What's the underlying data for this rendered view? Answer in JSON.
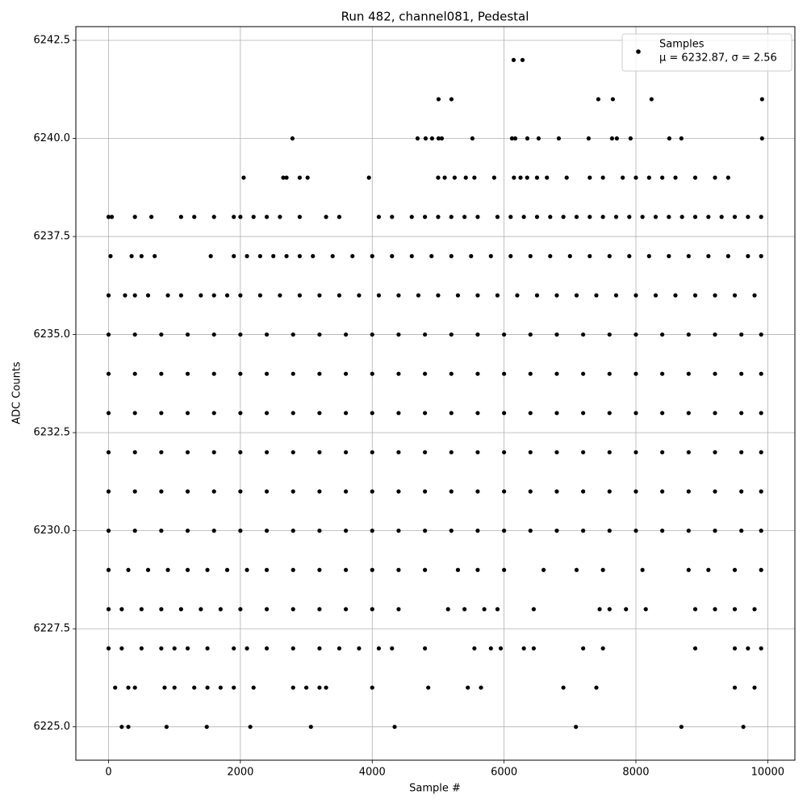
{
  "chart_data": {
    "type": "scatter",
    "title": "Run 482, channel081, Pedestal",
    "x_label": "Sample #",
    "y_label": "ADC Counts",
    "xlim": [
      -496,
      10412
    ],
    "ylim": [
      6224.15,
      6242.85
    ],
    "xticks": [
      0,
      2000,
      4000,
      6000,
      8000,
      10000
    ],
    "yticks": [
      {
        "value": 6225,
        "label": "6225.0"
      },
      6227.5,
      {
        "value": 6230,
        "label": "6230.0"
      },
      6232.5,
      {
        "value": 6235,
        "label": "6235.0"
      },
      6237.5,
      {
        "value": 6240,
        "label": "6240.0"
      },
      6242.5
    ],
    "grid": true,
    "legend": "upper right",
    "legend_note": "μ = 6232.87, σ = 2.56",
    "series": [
      {
        "name": "Samples",
        "color": "#000000",
        "x": [
          6145,
          6280,
          5006,
          5202,
          7430,
          7650,
          8237,
          9914,
          2790,
          4688,
          4810,
          4908,
          5006,
          5055,
          5520,
          6120,
          6170,
          6353,
          6524,
          6830,
          7283,
          7638,
          7711,
          7919,
          8507,
          8690,
          9914,
          2050,
          2650,
          2700,
          2900,
          3020,
          3950,
          5000,
          5100,
          5250,
          5420,
          5550,
          5850,
          6150,
          6250,
          6350,
          6500,
          6650,
          6950,
          7300,
          7500,
          7800,
          8000,
          8200,
          8400,
          8600,
          8900,
          9200,
          9400,
          0,
          50,
          400,
          650,
          1100,
          1300,
          1600,
          1900,
          2000,
          2200,
          2400,
          2600,
          2900,
          3300,
          3500,
          4100,
          4300,
          4600,
          4800,
          5000,
          5200,
          5400,
          5600,
          5900,
          6100,
          6300,
          6500,
          6700,
          6900,
          7100,
          7300,
          7500,
          7700,
          7900,
          8100,
          8300,
          8500,
          8700,
          8900,
          9100,
          9300,
          9500,
          9700,
          9900,
          30,
          350,
          500,
          700,
          1550,
          1900,
          2100,
          2300,
          2500,
          2700,
          2900,
          3100,
          3400,
          3700,
          4000,
          4300,
          4600,
          4900,
          5200,
          5500,
          5800,
          6100,
          6400,
          6700,
          7000,
          7300,
          7600,
          7900,
          8200,
          8500,
          8800,
          9100,
          9400,
          9700,
          9900,
          0,
          250,
          400,
          600,
          900,
          1100,
          1400,
          1600,
          1800,
          2000,
          2300,
          2600,
          2900,
          3200,
          3500,
          3800,
          4100,
          4400,
          4700,
          5000,
          5300,
          5600,
          5900,
          6200,
          6500,
          6800,
          7100,
          7400,
          7700,
          8000,
          8300,
          8600,
          8900,
          9200,
          9500,
          9800,
          0,
          400,
          800,
          1200,
          1600,
          2000,
          2400,
          2800,
          3200,
          3600,
          4000,
          4400,
          4800,
          5200,
          5600,
          6000,
          6400,
          6800,
          7200,
          7600,
          8000,
          8400,
          8800,
          9200,
          9600,
          9900,
          0,
          400,
          800,
          1200,
          1600,
          2000,
          2400,
          2800,
          3200,
          3600,
          4000,
          4400,
          4800,
          5200,
          5600,
          6000,
          6400,
          6800,
          7200,
          7600,
          8000,
          8400,
          8800,
          9200,
          9600,
          9900,
          0,
          400,
          800,
          1200,
          1600,
          2000,
          2400,
          2800,
          3200,
          3600,
          4000,
          4400,
          4800,
          5200,
          5600,
          6000,
          6400,
          6800,
          7200,
          7600,
          8000,
          8400,
          8800,
          9200,
          9600,
          9900,
          0,
          400,
          800,
          1200,
          1600,
          2000,
          2400,
          2800,
          3200,
          3600,
          4000,
          4400,
          4800,
          5200,
          5600,
          6000,
          6400,
          6800,
          7200,
          7600,
          8000,
          8400,
          8800,
          9200,
          9600,
          9900,
          0,
          400,
          800,
          1200,
          1600,
          2000,
          2400,
          2800,
          3200,
          3600,
          4000,
          4400,
          4800,
          5200,
          5600,
          6000,
          6400,
          6800,
          7200,
          7600,
          8000,
          8400,
          8800,
          9200,
          9600,
          9900,
          0,
          400,
          800,
          1200,
          1600,
          2000,
          2400,
          2800,
          3200,
          3600,
          4000,
          4400,
          4800,
          5200,
          5600,
          6000,
          6400,
          6800,
          7200,
          7600,
          8000,
          8400,
          8800,
          9200,
          9600,
          9900,
          0,
          300,
          600,
          900,
          1200,
          1500,
          1800,
          2100,
          2400,
          2800,
          3200,
          3600,
          4000,
          4400,
          4800,
          5300,
          5600,
          6000,
          6600,
          7100,
          7500,
          8100,
          8800,
          9100,
          9500,
          9900,
          0,
          200,
          500,
          800,
          1100,
          1400,
          1700,
          2000,
          2400,
          2800,
          3200,
          3600,
          4000,
          4400,
          5150,
          5400,
          5700,
          5900,
          6450,
          7450,
          7600,
          7850,
          8150,
          8900,
          9200,
          9500,
          9800,
          0,
          200,
          500,
          800,
          1000,
          1200,
          1500,
          1900,
          2100,
          2400,
          2800,
          3200,
          3500,
          3800,
          4100,
          4300,
          4800,
          5550,
          5800,
          5950,
          6300,
          6450,
          7200,
          7500,
          8900,
          9500,
          9700,
          9900,
          100,
          300,
          400,
          850,
          1000,
          1300,
          1500,
          1700,
          1900,
          2200,
          2800,
          3000,
          3200,
          3300,
          4000,
          4850,
          5450,
          5650,
          6900,
          7400,
          9500,
          9800,
          200,
          300,
          880,
          1490,
          2150,
          3070,
          4340,
          7090,
          8690,
          9630
        ],
        "values": [
          6242,
          6242,
          6241,
          6241,
          6241,
          6241,
          6241,
          6241,
          6240,
          6240,
          6240,
          6240,
          6240,
          6240,
          6240,
          6240,
          6240,
          6240,
          6240,
          6240,
          6240,
          6240,
          6240,
          6240,
          6240,
          6240,
          6240,
          6239,
          6239,
          6239,
          6239,
          6239,
          6239,
          6239,
          6239,
          6239,
          6239,
          6239,
          6239,
          6239,
          6239,
          6239,
          6239,
          6239,
          6239,
          6239,
          6239,
          6239,
          6239,
          6239,
          6239,
          6239,
          6239,
          6239,
          6239,
          6238,
          6238,
          6238,
          6238,
          6238,
          6238,
          6238,
          6238,
          6238,
          6238,
          6238,
          6238,
          6238,
          6238,
          6238,
          6238,
          6238,
          6238,
          6238,
          6238,
          6238,
          6238,
          6238,
          6238,
          6238,
          6238,
          6238,
          6238,
          6238,
          6238,
          6238,
          6238,
          6238,
          6238,
          6238,
          6238,
          6238,
          6238,
          6238,
          6238,
          6238,
          6238,
          6238,
          6238,
          6237,
          6237,
          6237,
          6237,
          6237,
          6237,
          6237,
          6237,
          6237,
          6237,
          6237,
          6237,
          6237,
          6237,
          6237,
          6237,
          6237,
          6237,
          6237,
          6237,
          6237,
          6237,
          6237,
          6237,
          6237,
          6237,
          6237,
          6237,
          6237,
          6237,
          6237,
          6237,
          6237,
          6237,
          6237,
          6236,
          6236,
          6236,
          6236,
          6236,
          6236,
          6236,
          6236,
          6236,
          6236,
          6236,
          6236,
          6236,
          6236,
          6236,
          6236,
          6236,
          6236,
          6236,
          6236,
          6236,
          6236,
          6236,
          6236,
          6236,
          6236,
          6236,
          6236,
          6236,
          6236,
          6236,
          6236,
          6236,
          6236,
          6236,
          6236,
          6235,
          6235,
          6235,
          6235,
          6235,
          6235,
          6235,
          6235,
          6235,
          6235,
          6235,
          6235,
          6235,
          6235,
          6235,
          6235,
          6235,
          6235,
          6235,
          6235,
          6235,
          6235,
          6235,
          6235,
          6235,
          6235,
          6234,
          6234,
          6234,
          6234,
          6234,
          6234,
          6234,
          6234,
          6234,
          6234,
          6234,
          6234,
          6234,
          6234,
          6234,
          6234,
          6234,
          6234,
          6234,
          6234,
          6234,
          6234,
          6234,
          6234,
          6234,
          6234,
          6233,
          6233,
          6233,
          6233,
          6233,
          6233,
          6233,
          6233,
          6233,
          6233,
          6233,
          6233,
          6233,
          6233,
          6233,
          6233,
          6233,
          6233,
          6233,
          6233,
          6233,
          6233,
          6233,
          6233,
          6233,
          6233,
          6232,
          6232,
          6232,
          6232,
          6232,
          6232,
          6232,
          6232,
          6232,
          6232,
          6232,
          6232,
          6232,
          6232,
          6232,
          6232,
          6232,
          6232,
          6232,
          6232,
          6232,
          6232,
          6232,
          6232,
          6232,
          6232,
          6231,
          6231,
          6231,
          6231,
          6231,
          6231,
          6231,
          6231,
          6231,
          6231,
          6231,
          6231,
          6231,
          6231,
          6231,
          6231,
          6231,
          6231,
          6231,
          6231,
          6231,
          6231,
          6231,
          6231,
          6231,
          6231,
          6230,
          6230,
          6230,
          6230,
          6230,
          6230,
          6230,
          6230,
          6230,
          6230,
          6230,
          6230,
          6230,
          6230,
          6230,
          6230,
          6230,
          6230,
          6230,
          6230,
          6230,
          6230,
          6230,
          6230,
          6230,
          6230,
          6229,
          6229,
          6229,
          6229,
          6229,
          6229,
          6229,
          6229,
          6229,
          6229,
          6229,
          6229,
          6229,
          6229,
          6229,
          6229,
          6229,
          6229,
          6229,
          6229,
          6229,
          6229,
          6229,
          6229,
          6229,
          6229,
          6228,
          6228,
          6228,
          6228,
          6228,
          6228,
          6228,
          6228,
          6228,
          6228,
          6228,
          6228,
          6228,
          6228,
          6228,
          6228,
          6228,
          6228,
          6228,
          6228,
          6228,
          6228,
          6228,
          6228,
          6228,
          6228,
          6228,
          6227,
          6227,
          6227,
          6227,
          6227,
          6227,
          6227,
          6227,
          6227,
          6227,
          6227,
          6227,
          6227,
          6227,
          6227,
          6227,
          6227,
          6227,
          6227,
          6227,
          6227,
          6227,
          6227,
          6227,
          6227,
          6227,
          6227,
          6227,
          6226,
          6226,
          6226,
          6226,
          6226,
          6226,
          6226,
          6226,
          6226,
          6226,
          6226,
          6226,
          6226,
          6226,
          6226,
          6226,
          6226,
          6226,
          6226,
          6226,
          6226,
          6226,
          6225,
          6225,
          6225,
          6225,
          6225,
          6225,
          6225,
          6225,
          6225,
          6225
        ]
      }
    ]
  }
}
